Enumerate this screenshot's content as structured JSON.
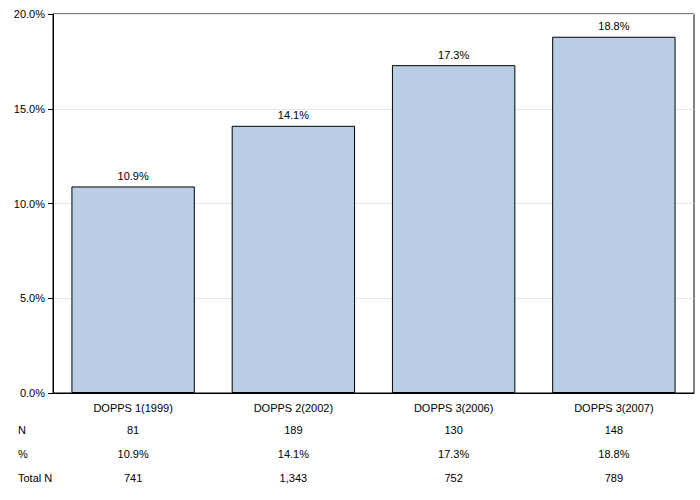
{
  "chart_data": {
    "type": "bar",
    "categories": [
      "DOPPS 1(1999)",
      "DOPPS 2(2002)",
      "DOPPS 3(2006)",
      "DOPPS 3(2007)"
    ],
    "values": [
      10.9,
      14.1,
      17.3,
      18.8
    ],
    "value_labels": [
      "10.9%",
      "14.1%",
      "17.3%",
      "18.8%"
    ],
    "color": "#b9cde5",
    "ylim": [
      0,
      20
    ],
    "yticks": [
      {
        "value": 0,
        "label": "0.0%"
      },
      {
        "value": 5,
        "label": "5.0%"
      },
      {
        "value": 10,
        "label": "10.0%"
      },
      {
        "value": 15,
        "label": "15.0%"
      },
      {
        "value": 20,
        "label": "20.0%"
      }
    ],
    "grid": true,
    "data_labels": true,
    "table": {
      "rows": [
        {
          "label": "N",
          "cells": [
            "81",
            "189",
            "130",
            "148"
          ]
        },
        {
          "label": "%",
          "cells": [
            "10.9%",
            "14.1%",
            "17.3%",
            "18.8%"
          ]
        },
        {
          "label": "Total N",
          "cells": [
            "741",
            "1,343",
            "752",
            "789"
          ]
        }
      ]
    }
  }
}
